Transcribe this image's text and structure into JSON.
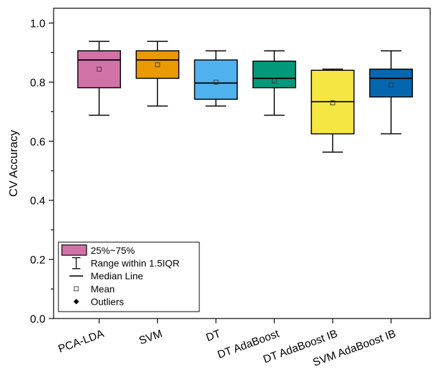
{
  "chart_data": {
    "type": "box",
    "title": "",
    "xlabel": "",
    "ylabel": "CV Accuracy",
    "ylim": [
      0.0,
      1.05
    ],
    "yticks": [
      "0.0",
      "0.2",
      "0.4",
      "0.6",
      "0.8",
      "1.0"
    ],
    "categories": [
      "PCA-LDA",
      "SVM",
      "DT",
      "DT AdaBoost",
      "DT AdaBoost IB",
      "SVM AdaBoost IB"
    ],
    "boxes": [
      {
        "name": "PCA-LDA",
        "whisker_low": 0.688,
        "q1": 0.781,
        "median": 0.875,
        "q3": 0.906,
        "whisker_high": 0.938,
        "mean": 0.844,
        "color": "#D173A7"
      },
      {
        "name": "SVM",
        "whisker_low": 0.719,
        "q1": 0.813,
        "median": 0.875,
        "q3": 0.906,
        "whisker_high": 0.938,
        "mean": 0.859,
        "color": "#E89A00"
      },
      {
        "name": "DT",
        "whisker_low": 0.719,
        "q1": 0.742,
        "median": 0.797,
        "q3": 0.875,
        "whisker_high": 0.906,
        "mean": 0.8,
        "color": "#4FB2EE"
      },
      {
        "name": "DT AdaBoost",
        "whisker_low": 0.688,
        "q1": 0.781,
        "median": 0.813,
        "q3": 0.871,
        "whisker_high": 0.906,
        "mean": 0.804,
        "color": "#00997A"
      },
      {
        "name": "DT AdaBoost IB",
        "whisker_low": 0.563,
        "q1": 0.625,
        "median": 0.734,
        "q3": 0.84,
        "whisker_high": 0.844,
        "mean": 0.73,
        "color": "#F5E643"
      },
      {
        "name": "SVM AdaBoost IB",
        "whisker_low": 0.625,
        "q1": 0.75,
        "median": 0.813,
        "q3": 0.844,
        "whisker_high": 0.906,
        "mean": 0.79,
        "color": "#0566B0"
      }
    ],
    "legend": {
      "placement": "bottom-left",
      "items": [
        {
          "symbol": "box",
          "label": "25%~75%",
          "color": "#D173A7"
        },
        {
          "symbol": "whisker",
          "label": "Range within 1.5IQR"
        },
        {
          "symbol": "line",
          "label": "Median Line"
        },
        {
          "symbol": "open-square",
          "label": "Mean"
        },
        {
          "symbol": "filled-diamond",
          "label": "Outliers"
        }
      ]
    },
    "grid": false
  }
}
